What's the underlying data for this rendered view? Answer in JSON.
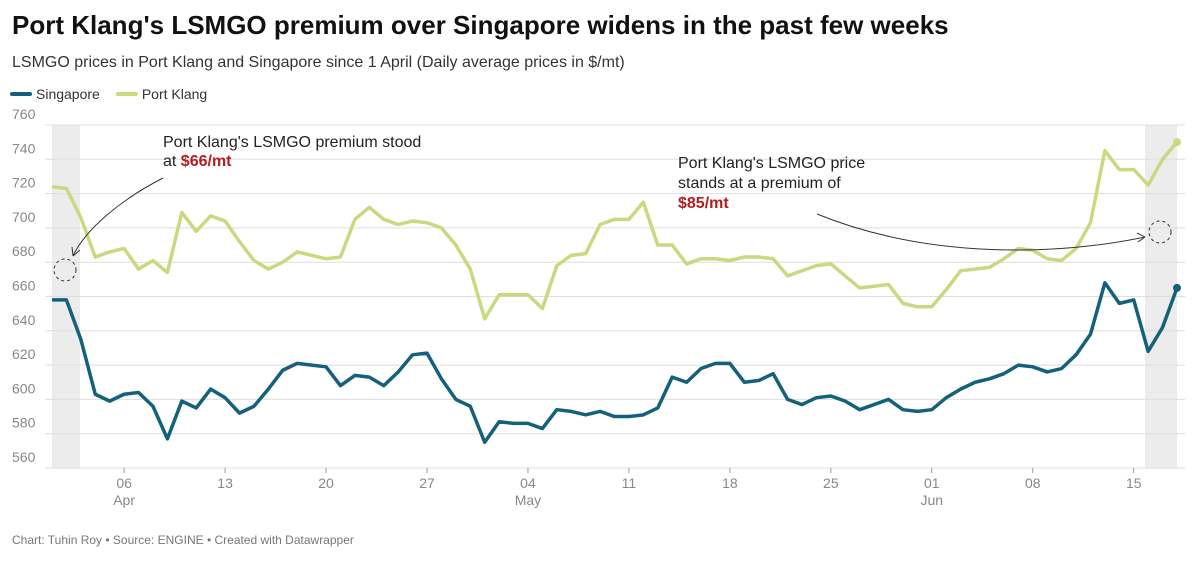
{
  "chart_data": {
    "type": "line",
    "title": "Port Klang's LSMGO premium over Singapore widens in the past few weeks",
    "subtitle": "LSMGO prices in Port Klang and Singapore since 1 April (Daily average prices in $/mt)",
    "footer": "Chart: Tuhin Roy • Source: ENGINE • Created with Datawrapper",
    "x": [
      "04-01",
      "04-02",
      "04-03",
      "04-04",
      "04-05",
      "04-06",
      "04-07",
      "04-08",
      "04-09",
      "04-10",
      "04-11",
      "04-12",
      "04-13",
      "04-14",
      "04-15",
      "04-16",
      "04-17",
      "04-18",
      "04-19",
      "04-20",
      "04-21",
      "04-22",
      "04-23",
      "04-24",
      "04-25",
      "04-26",
      "04-27",
      "04-28",
      "04-29",
      "04-30",
      "05-01",
      "05-02",
      "05-03",
      "05-04",
      "05-05",
      "05-06",
      "05-07",
      "05-08",
      "05-09",
      "05-10",
      "05-11",
      "05-12",
      "05-13",
      "05-14",
      "05-15",
      "05-16",
      "05-17",
      "05-18",
      "05-19",
      "05-20",
      "05-21",
      "05-22",
      "05-23",
      "05-24",
      "05-25",
      "05-26",
      "05-27",
      "05-28",
      "05-29",
      "05-30",
      "05-31",
      "06-01",
      "06-02",
      "06-03",
      "06-04",
      "06-05",
      "06-06",
      "06-07",
      "06-08",
      "06-09",
      "06-10",
      "06-11",
      "06-12",
      "06-13",
      "06-14",
      "06-15",
      "06-16",
      "06-17",
      "06-18"
    ],
    "series": [
      {
        "name": "Singapore",
        "color": "#15607a",
        "values": [
          658,
          658,
          635,
          603,
          599,
          603,
          604,
          596,
          577,
          599,
          595,
          606,
          601,
          592,
          596,
          606,
          617,
          621,
          620,
          619,
          608,
          614,
          613,
          608,
          616,
          626,
          627,
          612,
          600,
          596,
          575,
          587,
          586,
          586,
          583,
          594,
          593,
          591,
          593,
          590,
          590,
          591,
          595,
          613,
          610,
          618,
          621,
          621,
          610,
          611,
          615,
          600,
          597,
          601,
          602,
          599,
          594,
          597,
          600,
          594,
          593,
          594,
          601,
          606,
          610,
          612,
          615,
          620,
          619,
          616,
          618,
          626,
          638,
          668,
          656,
          658,
          628,
          642,
          665
        ]
      },
      {
        "name": "Port Klang",
        "color": "#c7da80",
        "values": [
          724,
          723,
          706,
          683,
          686,
          688,
          676,
          681,
          674,
          709,
          698,
          707,
          704,
          692,
          681,
          676,
          680,
          686,
          684,
          682,
          683,
          705,
          712,
          705,
          702,
          704,
          703,
          700,
          690,
          676,
          647,
          661,
          661,
          661,
          653,
          678,
          684,
          685,
          702,
          705,
          705,
          715,
          690,
          690,
          679,
          682,
          682,
          681,
          683,
          683,
          682,
          672,
          675,
          678,
          679,
          672,
          665,
          666,
          667,
          656,
          654,
          654,
          664,
          675,
          676,
          677,
          682,
          688,
          687,
          682,
          681,
          688,
          703,
          745,
          734,
          734,
          725,
          740,
          750
        ]
      }
    ],
    "ylim": [
      560,
      760
    ],
    "yticks": [
      560,
      580,
      600,
      620,
      640,
      660,
      680,
      700,
      720,
      740,
      760
    ],
    "grid": true,
    "xticks": [
      {
        "value": "04-06",
        "label": "06",
        "month": "Apr"
      },
      {
        "value": "04-13",
        "label": "13"
      },
      {
        "value": "04-20",
        "label": "20"
      },
      {
        "value": "04-27",
        "label": "27"
      },
      {
        "value": "05-04",
        "label": "04",
        "month": "May"
      },
      {
        "value": "05-11",
        "label": "11"
      },
      {
        "value": "05-18",
        "label": "18"
      },
      {
        "value": "05-25",
        "label": "25"
      },
      {
        "value": "06-01",
        "label": "01",
        "month": "Jun"
      },
      {
        "value": "06-08",
        "label": "08"
      },
      {
        "value": "06-15",
        "label": "15"
      }
    ],
    "annotations": [
      {
        "text": [
          "Port Klang's LSMGO premium stood",
          "at"
        ],
        "highlight": "$66/mt"
      },
      {
        "text": [
          "Port Klang's LSMGO price",
          "stands at a premium of"
        ],
        "highlight": "$85/mt"
      }
    ]
  }
}
